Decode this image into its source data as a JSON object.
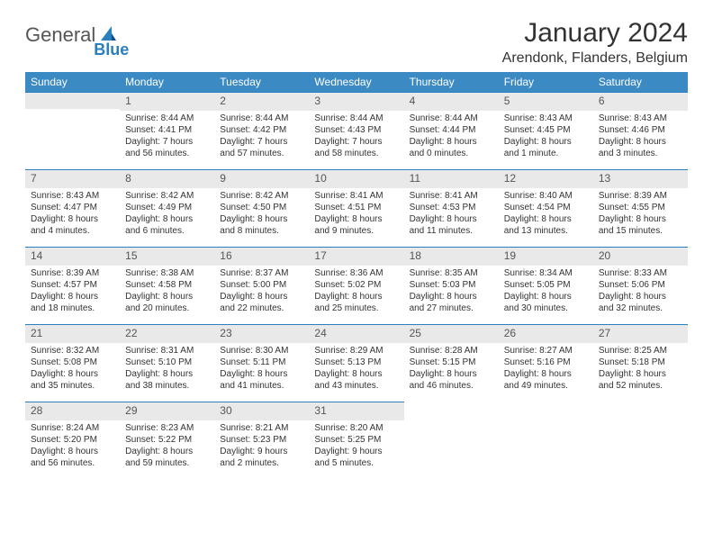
{
  "logo": {
    "text1": "General",
    "text2": "Blue"
  },
  "title": "January 2024",
  "subtitle": "Arendonk, Flanders, Belgium",
  "colors": {
    "header_bg": "#3b8ac4",
    "header_fg": "#ffffff",
    "daynum_bg": "#e9e9e9",
    "rule": "#2a7fbf",
    "text": "#333333",
    "logo_blue": "#2a7fbf",
    "logo_gray": "#555555"
  },
  "weekdays": [
    "Sunday",
    "Monday",
    "Tuesday",
    "Wednesday",
    "Thursday",
    "Friday",
    "Saturday"
  ],
  "weeks": [
    [
      null,
      {
        "n": "1",
        "sr": "Sunrise: 8:44 AM",
        "ss": "Sunset: 4:41 PM",
        "d1": "Daylight: 7 hours",
        "d2": "and 56 minutes."
      },
      {
        "n": "2",
        "sr": "Sunrise: 8:44 AM",
        "ss": "Sunset: 4:42 PM",
        "d1": "Daylight: 7 hours",
        "d2": "and 57 minutes."
      },
      {
        "n": "3",
        "sr": "Sunrise: 8:44 AM",
        "ss": "Sunset: 4:43 PM",
        "d1": "Daylight: 7 hours",
        "d2": "and 58 minutes."
      },
      {
        "n": "4",
        "sr": "Sunrise: 8:44 AM",
        "ss": "Sunset: 4:44 PM",
        "d1": "Daylight: 8 hours",
        "d2": "and 0 minutes."
      },
      {
        "n": "5",
        "sr": "Sunrise: 8:43 AM",
        "ss": "Sunset: 4:45 PM",
        "d1": "Daylight: 8 hours",
        "d2": "and 1 minute."
      },
      {
        "n": "6",
        "sr": "Sunrise: 8:43 AM",
        "ss": "Sunset: 4:46 PM",
        "d1": "Daylight: 8 hours",
        "d2": "and 3 minutes."
      }
    ],
    [
      {
        "n": "7",
        "sr": "Sunrise: 8:43 AM",
        "ss": "Sunset: 4:47 PM",
        "d1": "Daylight: 8 hours",
        "d2": "and 4 minutes."
      },
      {
        "n": "8",
        "sr": "Sunrise: 8:42 AM",
        "ss": "Sunset: 4:49 PM",
        "d1": "Daylight: 8 hours",
        "d2": "and 6 minutes."
      },
      {
        "n": "9",
        "sr": "Sunrise: 8:42 AM",
        "ss": "Sunset: 4:50 PM",
        "d1": "Daylight: 8 hours",
        "d2": "and 8 minutes."
      },
      {
        "n": "10",
        "sr": "Sunrise: 8:41 AM",
        "ss": "Sunset: 4:51 PM",
        "d1": "Daylight: 8 hours",
        "d2": "and 9 minutes."
      },
      {
        "n": "11",
        "sr": "Sunrise: 8:41 AM",
        "ss": "Sunset: 4:53 PM",
        "d1": "Daylight: 8 hours",
        "d2": "and 11 minutes."
      },
      {
        "n": "12",
        "sr": "Sunrise: 8:40 AM",
        "ss": "Sunset: 4:54 PM",
        "d1": "Daylight: 8 hours",
        "d2": "and 13 minutes."
      },
      {
        "n": "13",
        "sr": "Sunrise: 8:39 AM",
        "ss": "Sunset: 4:55 PM",
        "d1": "Daylight: 8 hours",
        "d2": "and 15 minutes."
      }
    ],
    [
      {
        "n": "14",
        "sr": "Sunrise: 8:39 AM",
        "ss": "Sunset: 4:57 PM",
        "d1": "Daylight: 8 hours",
        "d2": "and 18 minutes."
      },
      {
        "n": "15",
        "sr": "Sunrise: 8:38 AM",
        "ss": "Sunset: 4:58 PM",
        "d1": "Daylight: 8 hours",
        "d2": "and 20 minutes."
      },
      {
        "n": "16",
        "sr": "Sunrise: 8:37 AM",
        "ss": "Sunset: 5:00 PM",
        "d1": "Daylight: 8 hours",
        "d2": "and 22 minutes."
      },
      {
        "n": "17",
        "sr": "Sunrise: 8:36 AM",
        "ss": "Sunset: 5:02 PM",
        "d1": "Daylight: 8 hours",
        "d2": "and 25 minutes."
      },
      {
        "n": "18",
        "sr": "Sunrise: 8:35 AM",
        "ss": "Sunset: 5:03 PM",
        "d1": "Daylight: 8 hours",
        "d2": "and 27 minutes."
      },
      {
        "n": "19",
        "sr": "Sunrise: 8:34 AM",
        "ss": "Sunset: 5:05 PM",
        "d1": "Daylight: 8 hours",
        "d2": "and 30 minutes."
      },
      {
        "n": "20",
        "sr": "Sunrise: 8:33 AM",
        "ss": "Sunset: 5:06 PM",
        "d1": "Daylight: 8 hours",
        "d2": "and 32 minutes."
      }
    ],
    [
      {
        "n": "21",
        "sr": "Sunrise: 8:32 AM",
        "ss": "Sunset: 5:08 PM",
        "d1": "Daylight: 8 hours",
        "d2": "and 35 minutes."
      },
      {
        "n": "22",
        "sr": "Sunrise: 8:31 AM",
        "ss": "Sunset: 5:10 PM",
        "d1": "Daylight: 8 hours",
        "d2": "and 38 minutes."
      },
      {
        "n": "23",
        "sr": "Sunrise: 8:30 AM",
        "ss": "Sunset: 5:11 PM",
        "d1": "Daylight: 8 hours",
        "d2": "and 41 minutes."
      },
      {
        "n": "24",
        "sr": "Sunrise: 8:29 AM",
        "ss": "Sunset: 5:13 PM",
        "d1": "Daylight: 8 hours",
        "d2": "and 43 minutes."
      },
      {
        "n": "25",
        "sr": "Sunrise: 8:28 AM",
        "ss": "Sunset: 5:15 PM",
        "d1": "Daylight: 8 hours",
        "d2": "and 46 minutes."
      },
      {
        "n": "26",
        "sr": "Sunrise: 8:27 AM",
        "ss": "Sunset: 5:16 PM",
        "d1": "Daylight: 8 hours",
        "d2": "and 49 minutes."
      },
      {
        "n": "27",
        "sr": "Sunrise: 8:25 AM",
        "ss": "Sunset: 5:18 PM",
        "d1": "Daylight: 8 hours",
        "d2": "and 52 minutes."
      }
    ],
    [
      {
        "n": "28",
        "sr": "Sunrise: 8:24 AM",
        "ss": "Sunset: 5:20 PM",
        "d1": "Daylight: 8 hours",
        "d2": "and 56 minutes."
      },
      {
        "n": "29",
        "sr": "Sunrise: 8:23 AM",
        "ss": "Sunset: 5:22 PM",
        "d1": "Daylight: 8 hours",
        "d2": "and 59 minutes."
      },
      {
        "n": "30",
        "sr": "Sunrise: 8:21 AM",
        "ss": "Sunset: 5:23 PM",
        "d1": "Daylight: 9 hours",
        "d2": "and 2 minutes."
      },
      {
        "n": "31",
        "sr": "Sunrise: 8:20 AM",
        "ss": "Sunset: 5:25 PM",
        "d1": "Daylight: 9 hours",
        "d2": "and 5 minutes."
      },
      null,
      null,
      null
    ]
  ]
}
